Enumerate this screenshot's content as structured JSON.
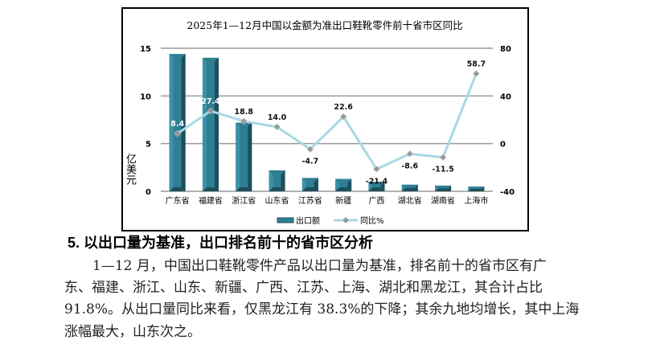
{
  "chart_data": {
    "type": "bar+line",
    "title": "2025年1—12月中国以金额为准出口鞋靴零件前十省市区同比",
    "categories": [
      "广东省",
      "福建省",
      "浙江省",
      "山东省",
      "江苏省",
      "新疆",
      "广西",
      "湖北省",
      "湖南省",
      "上海市"
    ],
    "series": [
      {
        "name": "出口额",
        "type": "bar",
        "axis": "left",
        "values": [
          14.4,
          14.0,
          7.2,
          2.2,
          1.4,
          1.3,
          1.0,
          0.7,
          0.6,
          0.5
        ]
      },
      {
        "name": "同比%",
        "type": "line",
        "axis": "right",
        "values": [
          8.4,
          27.4,
          18.8,
          14.0,
          -4.7,
          22.6,
          -21.4,
          -8.6,
          -11.5,
          58.7
        ]
      }
    ],
    "ylabel": "亿美元",
    "ylim": [
      0,
      15
    ],
    "yticks": [
      0,
      5,
      10,
      15
    ],
    "y2lim": [
      -40,
      80
    ],
    "y2ticks": [
      -40,
      0,
      40,
      80
    ],
    "grid": true,
    "legend_position": "bottom",
    "colors": {
      "bar": "#2f7f93",
      "bar_dark": "#1d4f5c",
      "line": "#a8d8e4"
    }
  },
  "article": {
    "heading": "5. 以出口量为基准，出口排名前十的省市区分析",
    "lines": [
      "1—12 月，中国出口鞋靴零件产品以出口量为基准，排名前十的省市区有广",
      "东、福建、浙江、山东、新疆、广西、江苏、上海、湖北和黑龙江，其合计占比",
      "91.8%。从出口量同比来看，仅黑龙江有 38.3%的下降；其余九地均增长，其中上海",
      "涨幅最大，山东次之。"
    ]
  }
}
